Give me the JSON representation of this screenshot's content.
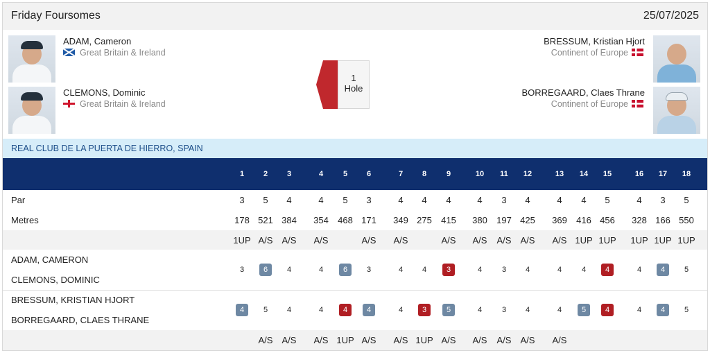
{
  "header": {
    "title": "Friday Foursomes",
    "date": "25/07/2025"
  },
  "left_pair": [
    {
      "name": "ADAM, Cameron",
      "team": "Great Britain & Ireland",
      "flag": "scotland-flag-icon"
    },
    {
      "name": "CLEMONS, Dominic",
      "team": "Great Britain & Ireland",
      "flag": "england-flag-icon"
    }
  ],
  "right_pair": [
    {
      "name": "BRESSUM, Kristian Hjort",
      "team": "Continent of Europe",
      "flag": "denmark-flag-icon"
    },
    {
      "name": "BORREGAARD, Claes Thrane",
      "team": "Continent of Europe",
      "flag": "denmark-flag-icon"
    }
  ],
  "result": {
    "line1": "1",
    "line2": "Hole",
    "leader_color": "#c0282d"
  },
  "venue": "REAL CLUB DE LA PUERTA DE HIERRO, SPAIN",
  "scorecard": {
    "holes": [
      "1",
      "2",
      "3",
      "4",
      "5",
      "6",
      "7",
      "8",
      "9",
      "10",
      "11",
      "12",
      "13",
      "14",
      "15",
      "16",
      "17",
      "18"
    ],
    "par_label": "Par",
    "par": [
      "3",
      "5",
      "4",
      "4",
      "5",
      "3",
      "4",
      "4",
      "4",
      "4",
      "3",
      "4",
      "4",
      "4",
      "5",
      "4",
      "3",
      "5"
    ],
    "metres_label": "Metres",
    "metres": [
      "178",
      "521",
      "384",
      "354",
      "468",
      "171",
      "349",
      "275",
      "415",
      "380",
      "197",
      "425",
      "369",
      "416",
      "456",
      "328",
      "166",
      "550"
    ],
    "status_top": [
      "1UP",
      "A/S",
      "A/S",
      "A/S",
      "",
      "A/S",
      "A/S",
      "",
      "A/S",
      "A/S",
      "A/S",
      "A/S",
      "A/S",
      "1UP",
      "1UP",
      "1UP",
      "1UP",
      "1UP"
    ],
    "team1": {
      "players": [
        "ADAM, CAMERON",
        "CLEMONS, DOMINIC"
      ],
      "scores": [
        {
          "v": "3",
          "t": ""
        },
        {
          "v": "6",
          "t": "birdie"
        },
        {
          "v": "4",
          "t": ""
        },
        {
          "v": "4",
          "t": ""
        },
        {
          "v": "6",
          "t": "birdie"
        },
        {
          "v": "3",
          "t": ""
        },
        {
          "v": "4",
          "t": ""
        },
        {
          "v": "4",
          "t": ""
        },
        {
          "v": "3",
          "t": "bogey"
        },
        {
          "v": "4",
          "t": ""
        },
        {
          "v": "3",
          "t": ""
        },
        {
          "v": "4",
          "t": ""
        },
        {
          "v": "4",
          "t": ""
        },
        {
          "v": "4",
          "t": ""
        },
        {
          "v": "4",
          "t": "bogey"
        },
        {
          "v": "4",
          "t": ""
        },
        {
          "v": "4",
          "t": "birdie"
        },
        {
          "v": "5",
          "t": ""
        }
      ]
    },
    "team2": {
      "players": [
        "BRESSUM, KRISTIAN HJORT",
        "BORREGAARD, CLAES THRANE"
      ],
      "scores": [
        {
          "v": "4",
          "t": "birdie"
        },
        {
          "v": "5",
          "t": ""
        },
        {
          "v": "4",
          "t": ""
        },
        {
          "v": "4",
          "t": ""
        },
        {
          "v": "4",
          "t": "bogey"
        },
        {
          "v": "4",
          "t": "birdie"
        },
        {
          "v": "4",
          "t": ""
        },
        {
          "v": "3",
          "t": "bogey"
        },
        {
          "v": "5",
          "t": "birdie"
        },
        {
          "v": "4",
          "t": ""
        },
        {
          "v": "3",
          "t": ""
        },
        {
          "v": "4",
          "t": ""
        },
        {
          "v": "4",
          "t": ""
        },
        {
          "v": "5",
          "t": "birdie"
        },
        {
          "v": "4",
          "t": "bogey"
        },
        {
          "v": "4",
          "t": ""
        },
        {
          "v": "4",
          "t": "birdie"
        },
        {
          "v": "5",
          "t": ""
        }
      ]
    },
    "status_bottom": [
      "",
      "A/S",
      "A/S",
      "A/S",
      "1UP",
      "A/S",
      "A/S",
      "1UP",
      "A/S",
      "A/S",
      "A/S",
      "A/S",
      "A/S",
      "",
      "",
      "",
      "",
      ""
    ]
  },
  "colors": {
    "header_bg": "#0f2f6e",
    "venue_bg": "#d6edf9",
    "badge_grey": "#6e88a3",
    "badge_red": "#b01e23"
  }
}
